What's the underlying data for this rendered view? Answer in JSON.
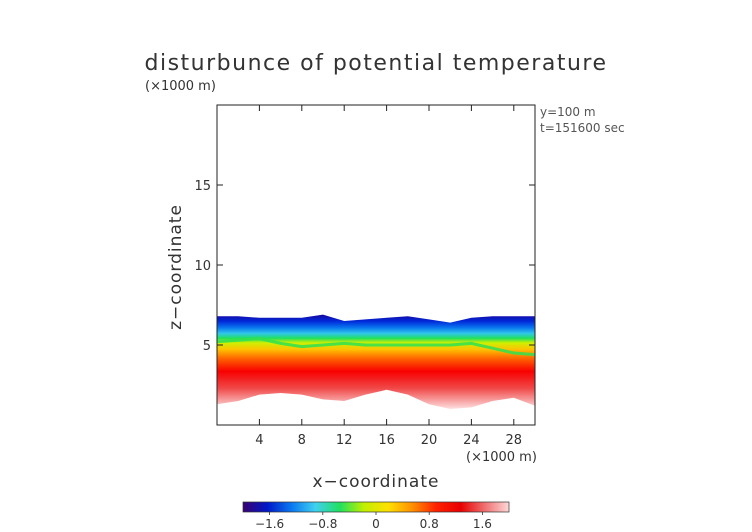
{
  "chart_data": {
    "type": "heatmap",
    "title": "disturbunce of potential temperature",
    "y_unit": "(×1000 m)",
    "x_unit": "(×1000 m)",
    "xlabel": "x−coordinate",
    "ylabel": "z−coordinate",
    "annotations": [
      "y=100 m",
      "t=151600 sec"
    ],
    "xlim": [
      0,
      30
    ],
    "ylim": [
      0,
      20
    ],
    "x_ticks": [
      4,
      8,
      12,
      16,
      20,
      24,
      28
    ],
    "x_tick_labels": [
      "4",
      "8",
      "12",
      "16",
      "20",
      "24",
      "28"
    ],
    "y_ticks": [
      5,
      10,
      15
    ],
    "y_tick_labels": [
      "5",
      "10",
      "15"
    ],
    "colorbar": {
      "range": [
        -2.0,
        2.0
      ],
      "ticks": [
        -1.6,
        -0.8,
        0,
        0.8,
        1.6
      ],
      "tick_labels": [
        "−1.6",
        "−0.8",
        "0",
        "0.8",
        "1.6"
      ],
      "colors": [
        "#3a0070",
        "#0018c8",
        "#0a78f0",
        "#40d0f0",
        "#20e060",
        "#c0f000",
        "#ffe000",
        "#ff9000",
        "#ff2000",
        "#e80000",
        "#f07070",
        "#ffd8d8"
      ]
    },
    "field_profile": {
      "x": [
        0,
        2,
        4,
        6,
        8,
        10,
        12,
        14,
        16,
        18,
        20,
        22,
        24,
        26,
        28,
        30
      ],
      "top_z": [
        6.8,
        6.8,
        6.7,
        6.7,
        6.7,
        6.9,
        6.5,
        6.6,
        6.7,
        6.8,
        6.6,
        6.4,
        6.7,
        6.8,
        6.8,
        6.8
      ],
      "bottom_z": [
        1.3,
        1.5,
        1.9,
        2.0,
        1.9,
        1.6,
        1.5,
        1.9,
        2.2,
        1.9,
        1.3,
        1.0,
        1.1,
        1.5,
        1.7,
        1.2
      ],
      "zero_line_z": [
        5.2,
        5.3,
        5.4,
        5.1,
        4.9,
        5.0,
        5.1,
        5.0,
        5.0,
        5.0,
        5.0,
        5.0,
        5.1,
        4.8,
        4.5,
        4.4
      ]
    }
  }
}
